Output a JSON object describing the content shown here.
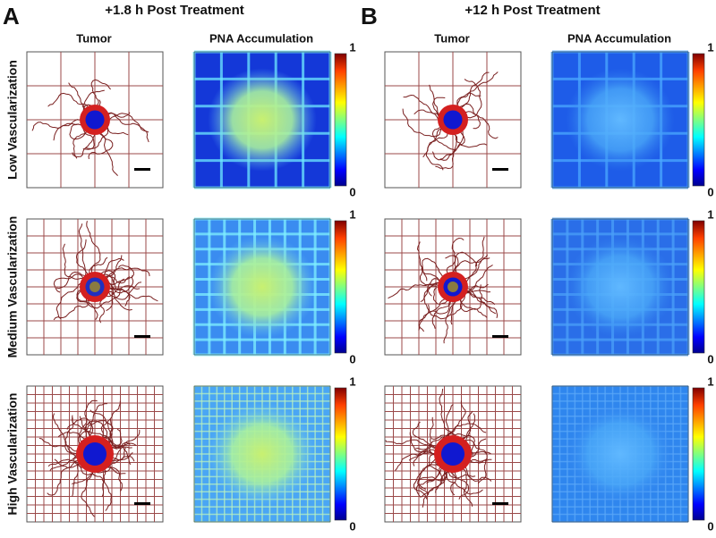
{
  "panels": [
    {
      "letter": "A",
      "title": "+1.8 h Post Treatment",
      "columns": [
        "Tumor",
        "PNA Accumulation"
      ]
    },
    {
      "letter": "B",
      "title": "+12 h Post Treatment",
      "columns": [
        "Tumor",
        "PNA Accumulation"
      ]
    }
  ],
  "rows": [
    "Low Vascularization",
    "Medium Vascularization",
    "High Vascularization"
  ],
  "colorbar": {
    "max": 1,
    "min": 0
  }
}
